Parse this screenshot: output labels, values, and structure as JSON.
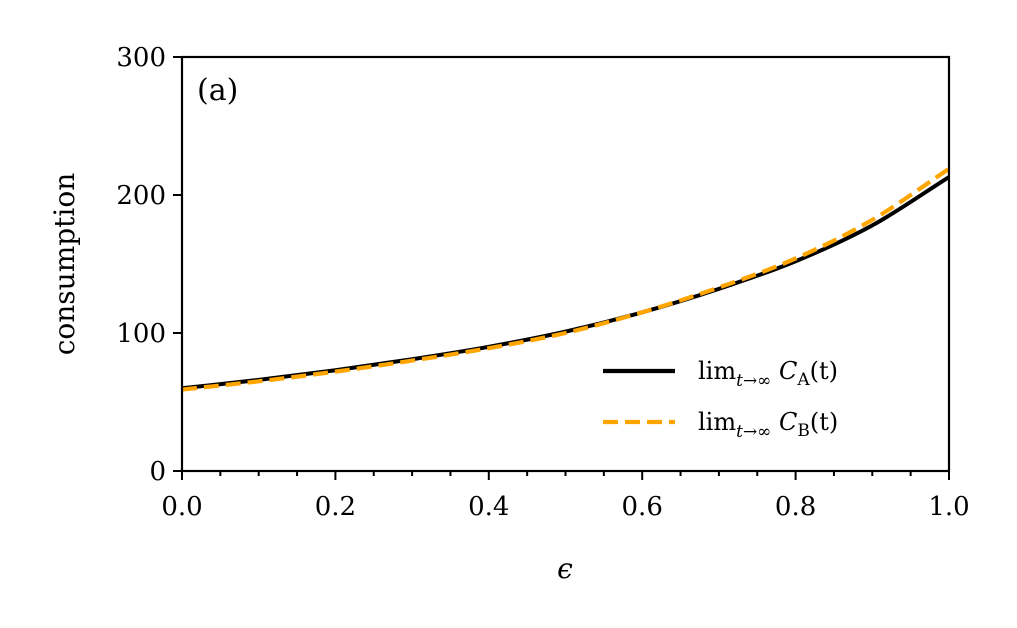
{
  "chart_data": {
    "type": "line",
    "panel_label": "(a)",
    "xlabel": "ϵ",
    "ylabel": "consumption",
    "xlim": [
      0.0,
      1.0
    ],
    "ylim": [
      0,
      300
    ],
    "x_ticks": [
      0.0,
      0.2,
      0.4,
      0.6,
      0.8,
      1.0
    ],
    "x_tick_labels": [
      "0.0",
      "0.2",
      "0.4",
      "0.6",
      "0.8",
      "1.0"
    ],
    "y_ticks": [
      0,
      100,
      200,
      300
    ],
    "y_tick_labels": [
      "0",
      "100",
      "200",
      "300"
    ],
    "x_minor_step": 0.05,
    "grid": false,
    "legend_position": "lower-right",
    "series": [
      {
        "legend_main": "lim",
        "legend_sub": "t→∞",
        "legend_func": "C",
        "legend_func_sub": "A",
        "legend_tail": "(t)",
        "color": "#000000",
        "style": "solid",
        "x": [
          0.0,
          0.1,
          0.2,
          0.3,
          0.4,
          0.5,
          0.6,
          0.7,
          0.8,
          0.9,
          1.0
        ],
        "y": [
          60,
          66,
          73,
          81,
          90,
          101,
          115,
          132,
          152,
          178,
          213
        ]
      },
      {
        "legend_main": "lim",
        "legend_sub": "t→∞",
        "legend_func": "C",
        "legend_func_sub": "B",
        "legend_tail": "(t)",
        "color": "#FFA500",
        "style": "dashed",
        "x": [
          0.0,
          0.1,
          0.2,
          0.3,
          0.4,
          0.5,
          0.6,
          0.7,
          0.8,
          0.9,
          1.0
        ],
        "y": [
          59,
          65,
          72,
          80,
          89,
          100,
          115,
          133,
          154,
          182,
          219
        ]
      }
    ]
  }
}
